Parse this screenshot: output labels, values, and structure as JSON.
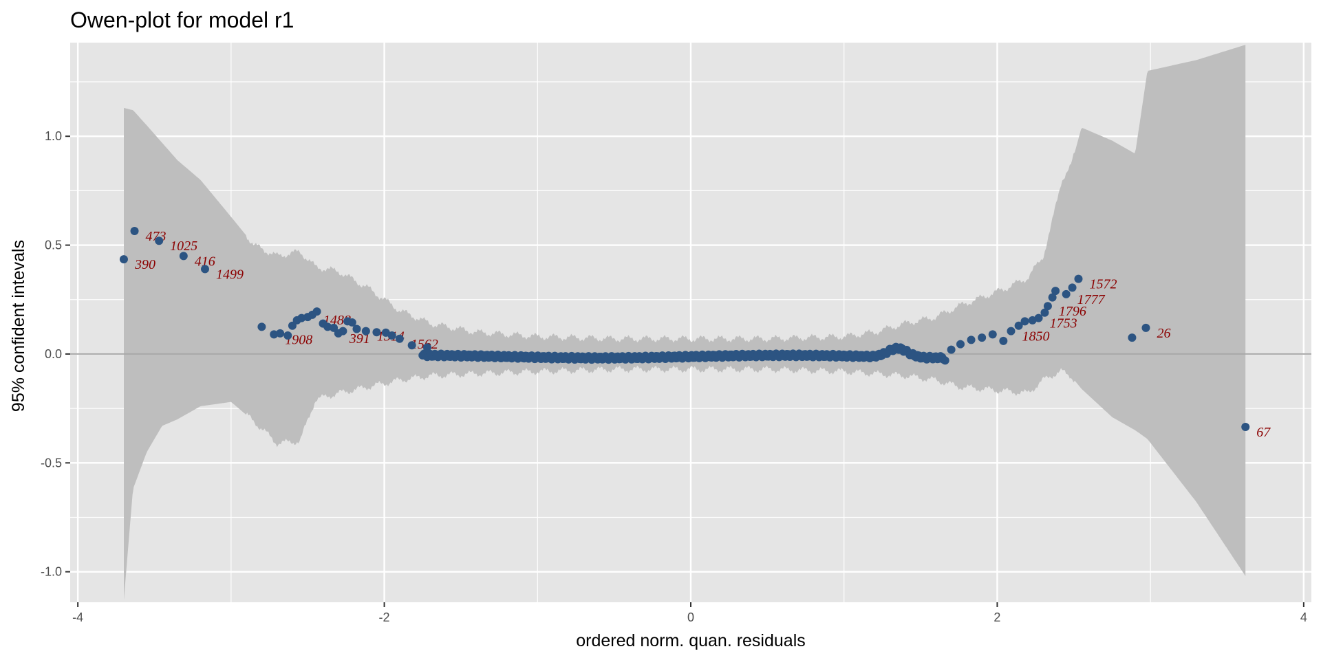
{
  "chart_data": {
    "type": "scatter",
    "title": "Owen-plot for model r1",
    "xlabel": "ordered norm. quan. residuals",
    "ylabel": "95% confident intevals",
    "xlim": [
      -4.05,
      4.05
    ],
    "ylim": [
      -1.14,
      1.43
    ],
    "x_ticks": [
      -4,
      -2,
      0,
      2,
      4
    ],
    "x_tick_labels": [
      "-4",
      "-2",
      "0",
      "2",
      "4"
    ],
    "y_ticks": [
      -1.0,
      -0.5,
      0.0,
      0.5,
      1.0
    ],
    "y_tick_labels": [
      "-1.0",
      "-0.5",
      "0.0",
      "0.5",
      "1.0"
    ],
    "grid": true,
    "reference_line_y": 0,
    "colors": {
      "panel": "#e5e5e5",
      "grid": "#ffffff",
      "band": "#bebebe",
      "points": "#2c5482",
      "labels": "#8b0000",
      "reference_line": "#a8a8a8"
    },
    "confidence_band": {
      "x": [
        -3.7,
        -3.64,
        -3.55,
        -3.45,
        -3.35,
        -3.2,
        -3.0,
        -2.85,
        -2.7,
        -2.55,
        -2.45,
        -2.3,
        -2.1,
        -1.9,
        -1.7,
        -1.4,
        -1.0,
        -0.5,
        0.0,
        0.5,
        1.0,
        1.2,
        1.4,
        1.6,
        1.75,
        1.9,
        2.05,
        2.2,
        2.3,
        2.35,
        2.42,
        2.48,
        2.55,
        2.75,
        2.9,
        2.98,
        3.3,
        3.62
      ],
      "upper": [
        1.13,
        1.12,
        1.05,
        0.97,
        0.89,
        0.8,
        0.63,
        0.5,
        0.45,
        0.47,
        0.4,
        0.38,
        0.3,
        0.2,
        0.14,
        0.1,
        0.08,
        0.07,
        0.07,
        0.07,
        0.08,
        0.1,
        0.14,
        0.17,
        0.22,
        0.26,
        0.3,
        0.35,
        0.45,
        0.58,
        0.8,
        0.86,
        1.04,
        0.98,
        0.92,
        1.3,
        1.35,
        1.42
      ],
      "lower": [
        -1.13,
        -0.62,
        -0.45,
        -0.33,
        -0.3,
        -0.24,
        -0.22,
        -0.31,
        -0.41,
        -0.4,
        -0.21,
        -0.18,
        -0.15,
        -0.12,
        -0.1,
        -0.09,
        -0.08,
        -0.07,
        -0.07,
        -0.07,
        -0.08,
        -0.09,
        -0.1,
        -0.12,
        -0.15,
        -0.16,
        -0.17,
        -0.18,
        -0.12,
        -0.1,
        -0.08,
        -0.1,
        -0.16,
        -0.29,
        -0.35,
        -0.39,
        -0.68,
        -1.02
      ]
    },
    "points": [
      {
        "x": -3.7,
        "y": 0.435,
        "label": "390"
      },
      {
        "x": -3.63,
        "y": 0.565,
        "label": "473"
      },
      {
        "x": -3.47,
        "y": 0.52,
        "label": "1025"
      },
      {
        "x": -3.31,
        "y": 0.45,
        "label": "416"
      },
      {
        "x": -3.17,
        "y": 0.39,
        "label": "1499"
      },
      {
        "x": -2.8,
        "y": 0.125,
        "label": ""
      },
      {
        "x": -2.72,
        "y": 0.09,
        "label": "1908"
      },
      {
        "x": -2.68,
        "y": 0.095,
        "label": ""
      },
      {
        "x": -2.63,
        "y": 0.085,
        "label": ""
      },
      {
        "x": -2.6,
        "y": 0.13,
        "label": ""
      },
      {
        "x": -2.57,
        "y": 0.155,
        "label": ""
      },
      {
        "x": -2.54,
        "y": 0.165,
        "label": ""
      },
      {
        "x": -2.5,
        "y": 0.17,
        "label": ""
      },
      {
        "x": -2.47,
        "y": 0.18,
        "label": "1488"
      },
      {
        "x": -2.44,
        "y": 0.195,
        "label": ""
      },
      {
        "x": -2.4,
        "y": 0.14,
        "label": ""
      },
      {
        "x": -2.37,
        "y": 0.125,
        "label": ""
      },
      {
        "x": -2.33,
        "y": 0.12,
        "label": ""
      },
      {
        "x": -2.3,
        "y": 0.095,
        "label": "391"
      },
      {
        "x": -2.27,
        "y": 0.105,
        "label": ""
      },
      {
        "x": -2.24,
        "y": 0.15,
        "label": ""
      },
      {
        "x": -2.21,
        "y": 0.145,
        "label": ""
      },
      {
        "x": -2.18,
        "y": 0.115,
        "label": ""
      },
      {
        "x": -2.12,
        "y": 0.105,
        "label": "1314"
      },
      {
        "x": -2.05,
        "y": 0.1,
        "label": ""
      },
      {
        "x": -1.99,
        "y": 0.098,
        "label": ""
      },
      {
        "x": -1.95,
        "y": 0.085,
        "label": ""
      },
      {
        "x": -1.9,
        "y": 0.07,
        "label": "1562"
      },
      {
        "x": -1.82,
        "y": 0.04,
        "label": ""
      },
      {
        "x": -1.72,
        "y": 0.03,
        "label": ""
      },
      {
        "x": 1.66,
        "y": -0.03,
        "label": ""
      },
      {
        "x": 1.7,
        "y": 0.02,
        "label": ""
      },
      {
        "x": 1.76,
        "y": 0.045,
        "label": ""
      },
      {
        "x": 1.83,
        "y": 0.065,
        "label": ""
      },
      {
        "x": 1.9,
        "y": 0.075,
        "label": ""
      },
      {
        "x": 1.97,
        "y": 0.09,
        "label": ""
      },
      {
        "x": 2.04,
        "y": 0.06,
        "label": ""
      },
      {
        "x": 2.09,
        "y": 0.105,
        "label": "1850"
      },
      {
        "x": 2.14,
        "y": 0.13,
        "label": ""
      },
      {
        "x": 2.18,
        "y": 0.15,
        "label": ""
      },
      {
        "x": 2.23,
        "y": 0.155,
        "label": ""
      },
      {
        "x": 2.27,
        "y": 0.165,
        "label": "1753"
      },
      {
        "x": 2.31,
        "y": 0.19,
        "label": ""
      },
      {
        "x": 2.33,
        "y": 0.22,
        "label": "1796"
      },
      {
        "x": 2.36,
        "y": 0.26,
        "label": ""
      },
      {
        "x": 2.38,
        "y": 0.29,
        "label": ""
      },
      {
        "x": 2.45,
        "y": 0.275,
        "label": "1777"
      },
      {
        "x": 2.49,
        "y": 0.305,
        "label": ""
      },
      {
        "x": 2.53,
        "y": 0.345,
        "label": "1572"
      },
      {
        "x": 2.88,
        "y": 0.075,
        "label": ""
      },
      {
        "x": 2.97,
        "y": 0.12,
        "label": "26"
      },
      {
        "x": 3.62,
        "y": -0.335,
        "label": "67"
      }
    ],
    "dense_segment": {
      "x_start": -1.75,
      "x_end": 1.65,
      "y_min": -0.03,
      "y_max": 0.05
    }
  }
}
